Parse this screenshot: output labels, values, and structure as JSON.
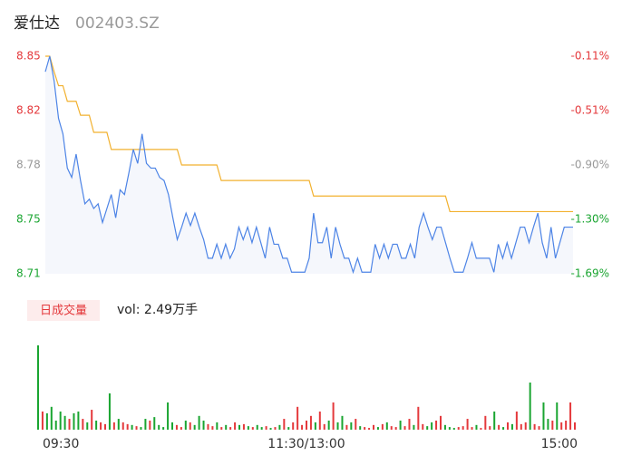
{
  "header": {
    "name": "爱仕达",
    "code": "002403.SZ"
  },
  "chart_data": [
    {
      "type": "line",
      "x": [
        0,
        2,
        4,
        6,
        8,
        10,
        12,
        14,
        16,
        18,
        20,
        22,
        24,
        26,
        28,
        30,
        32,
        34,
        36,
        38,
        40,
        42,
        44,
        46,
        48,
        50,
        52,
        54,
        56,
        58,
        60,
        62,
        64,
        66,
        68,
        70,
        72,
        74,
        76,
        78,
        80,
        82,
        84,
        86,
        88,
        90,
        92,
        94,
        96,
        98,
        100,
        102,
        104,
        106,
        108,
        110,
        112,
        114,
        116,
        118,
        120,
        122,
        124,
        126,
        128,
        130,
        132,
        134,
        136,
        138,
        140,
        142,
        144,
        146,
        148,
        150,
        152,
        154,
        156,
        158,
        160,
        162,
        164,
        166,
        168,
        170,
        172,
        174,
        176,
        178,
        180,
        182,
        184,
        186,
        188,
        190,
        192,
        194,
        196,
        198,
        200,
        202,
        204,
        206,
        208,
        210,
        212,
        214,
        216,
        218,
        220,
        222,
        224,
        226,
        228,
        230,
        232,
        234,
        236,
        238,
        240
      ],
      "xlim": [
        0,
        240
      ],
      "ylim": [
        8.71,
        8.85
      ],
      "yticks": [
        8.85,
        {
          "value": 8.815,
          "label": "8.82"
        },
        8.78,
        {
          "value": 8.745,
          "label": "8.75"
        },
        8.71
      ],
      "y2lim": [
        -1.693,
        -0.113
      ],
      "y2ticks": [
        {
          "value": -0.113,
          "label": "-0.11%"
        },
        {
          "value": -0.508,
          "label": "-0.51%"
        },
        {
          "value": -0.903,
          "label": "-0.90%"
        },
        {
          "value": -1.298,
          "label": "-1.30%"
        },
        {
          "value": -1.693,
          "label": "-1.69%"
        }
      ],
      "up_color": "#e4393c",
      "down_color": "#1aa531",
      "flat_color": "#999999",
      "area_color": "#f5f7fc",
      "series": [
        {
          "color": "#4d84e6",
          "values": [
            8.84,
            8.85,
            8.834,
            8.81,
            8.8,
            8.778,
            8.772,
            8.787,
            8.77,
            8.755,
            8.758,
            8.752,
            8.755,
            8.743,
            8.752,
            8.761,
            8.746,
            8.764,
            8.761,
            8.775,
            8.79,
            8.781,
            8.8,
            8.781,
            8.778,
            8.778,
            8.772,
            8.77,
            8.761,
            8.746,
            8.732,
            8.74,
            8.749,
            8.741,
            8.749,
            8.74,
            8.732,
            8.72,
            8.72,
            8.729,
            8.72,
            8.729,
            8.72,
            8.726,
            8.74,
            8.732,
            8.74,
            8.73,
            8.74,
            8.73,
            8.72,
            8.74,
            8.729,
            8.729,
            8.72,
            8.72,
            8.711,
            8.711,
            8.711,
            8.711,
            8.72,
            8.749,
            8.73,
            8.73,
            8.74,
            8.72,
            8.74,
            8.729,
            8.72,
            8.72,
            8.711,
            8.72,
            8.711,
            8.711,
            8.711,
            8.729,
            8.72,
            8.729,
            8.72,
            8.729,
            8.729,
            8.72,
            8.72,
            8.729,
            8.72,
            8.74,
            8.749,
            8.74,
            8.732,
            8.74,
            8.74,
            8.73,
            8.72,
            8.711,
            8.711,
            8.711,
            8.72,
            8.73,
            8.72,
            8.72,
            8.72,
            8.72,
            8.711,
            8.729,
            8.72,
            8.73,
            8.72,
            8.73,
            8.74,
            8.74,
            8.73,
            8.74,
            8.749,
            8.73,
            8.72,
            8.74,
            8.72,
            8.73,
            8.74,
            8.74,
            8.74
          ]
        },
        {
          "color": "#f2b12f",
          "values": [
            8.85,
            8.85,
            8.84,
            8.831,
            8.831,
            8.821,
            8.821,
            8.821,
            8.812,
            8.812,
            8.812,
            8.801,
            8.801,
            8.801,
            8.801,
            8.79,
            8.79,
            8.79,
            8.79,
            8.79,
            8.79,
            8.79,
            8.79,
            8.79,
            8.79,
            8.79,
            8.79,
            8.79,
            8.79,
            8.79,
            8.79,
            8.78,
            8.78,
            8.78,
            8.78,
            8.78,
            8.78,
            8.78,
            8.78,
            8.78,
            8.77,
            8.77,
            8.77,
            8.77,
            8.77,
            8.77,
            8.77,
            8.77,
            8.77,
            8.77,
            8.77,
            8.77,
            8.77,
            8.77,
            8.77,
            8.77,
            8.77,
            8.77,
            8.77,
            8.77,
            8.77,
            8.76,
            8.76,
            8.76,
            8.76,
            8.76,
            8.76,
            8.76,
            8.76,
            8.76,
            8.76,
            8.76,
            8.76,
            8.76,
            8.76,
            8.76,
            8.76,
            8.76,
            8.76,
            8.76,
            8.76,
            8.76,
            8.76,
            8.76,
            8.76,
            8.76,
            8.76,
            8.76,
            8.76,
            8.76,
            8.76,
            8.76,
            8.75,
            8.75,
            8.75,
            8.75,
            8.75,
            8.75,
            8.75,
            8.75,
            8.75,
            8.75,
            8.75,
            8.75,
            8.75,
            8.75,
            8.75,
            8.75,
            8.75,
            8.75,
            8.75,
            8.75,
            8.75,
            8.75,
            8.75,
            8.75,
            8.75,
            8.75,
            8.75,
            8.75,
            8.75
          ]
        }
      ]
    },
    {
      "type": "bar",
      "legend_button": "日成交量",
      "legend_text": "vol: 2.49万手",
      "xlim": [
        0,
        240
      ],
      "xticks": [
        {
          "value": 0,
          "label": "09:30"
        },
        {
          "value": 120,
          "label": "11:30/13:00"
        },
        {
          "value": 240,
          "label": "15:00"
        }
      ],
      "up_color": "#e4393c",
      "down_color": "#1aa531",
      "values": [
        28.8,
        6.2,
        5.6,
        7.8,
        3.1,
        6.2,
        4.7,
        3.7,
        5.6,
        6.2,
        3.7,
        2.5,
        6.8,
        3.1,
        2.5,
        1.9,
        12.4,
        2.5,
        3.7,
        2.5,
        1.9,
        1.6,
        1.2,
        0.9,
        3.7,
        3.1,
        4.3,
        1.6,
        0.9,
        9.3,
        2.5,
        1.6,
        0.9,
        3.1,
        2.5,
        1.6,
        4.7,
        3.1,
        1.9,
        1.2,
        2.5,
        0.9,
        1.6,
        0.9,
        2.5,
        1.6,
        1.9,
        1.2,
        0.9,
        1.6,
        0.9,
        1.2,
        0.6,
        0.9,
        1.6,
        3.7,
        0.9,
        2.5,
        7.8,
        1.6,
        3.1,
        4.7,
        2.5,
        6.2,
        1.9,
        3.1,
        9.3,
        2.5,
        4.7,
        1.6,
        2.5,
        3.7,
        1.2,
        0.9,
        0.6,
        1.6,
        0.9,
        1.9,
        2.5,
        1.2,
        0.9,
        3.1,
        1.2,
        3.7,
        1.6,
        7.8,
        1.9,
        1.2,
        2.5,
        3.1,
        4.7,
        1.6,
        0.9,
        0.6,
        0.9,
        1.2,
        3.7,
        0.9,
        1.6,
        0.6,
        4.7,
        1.2,
        6.2,
        1.6,
        0.9,
        2.5,
        1.9,
        6.2,
        1.9,
        2.5,
        16.1,
        1.9,
        1.2,
        9.3,
        3.7,
        3.1,
        9.3,
        2.5,
        3.1,
        9.3,
        2.49
      ]
    }
  ]
}
